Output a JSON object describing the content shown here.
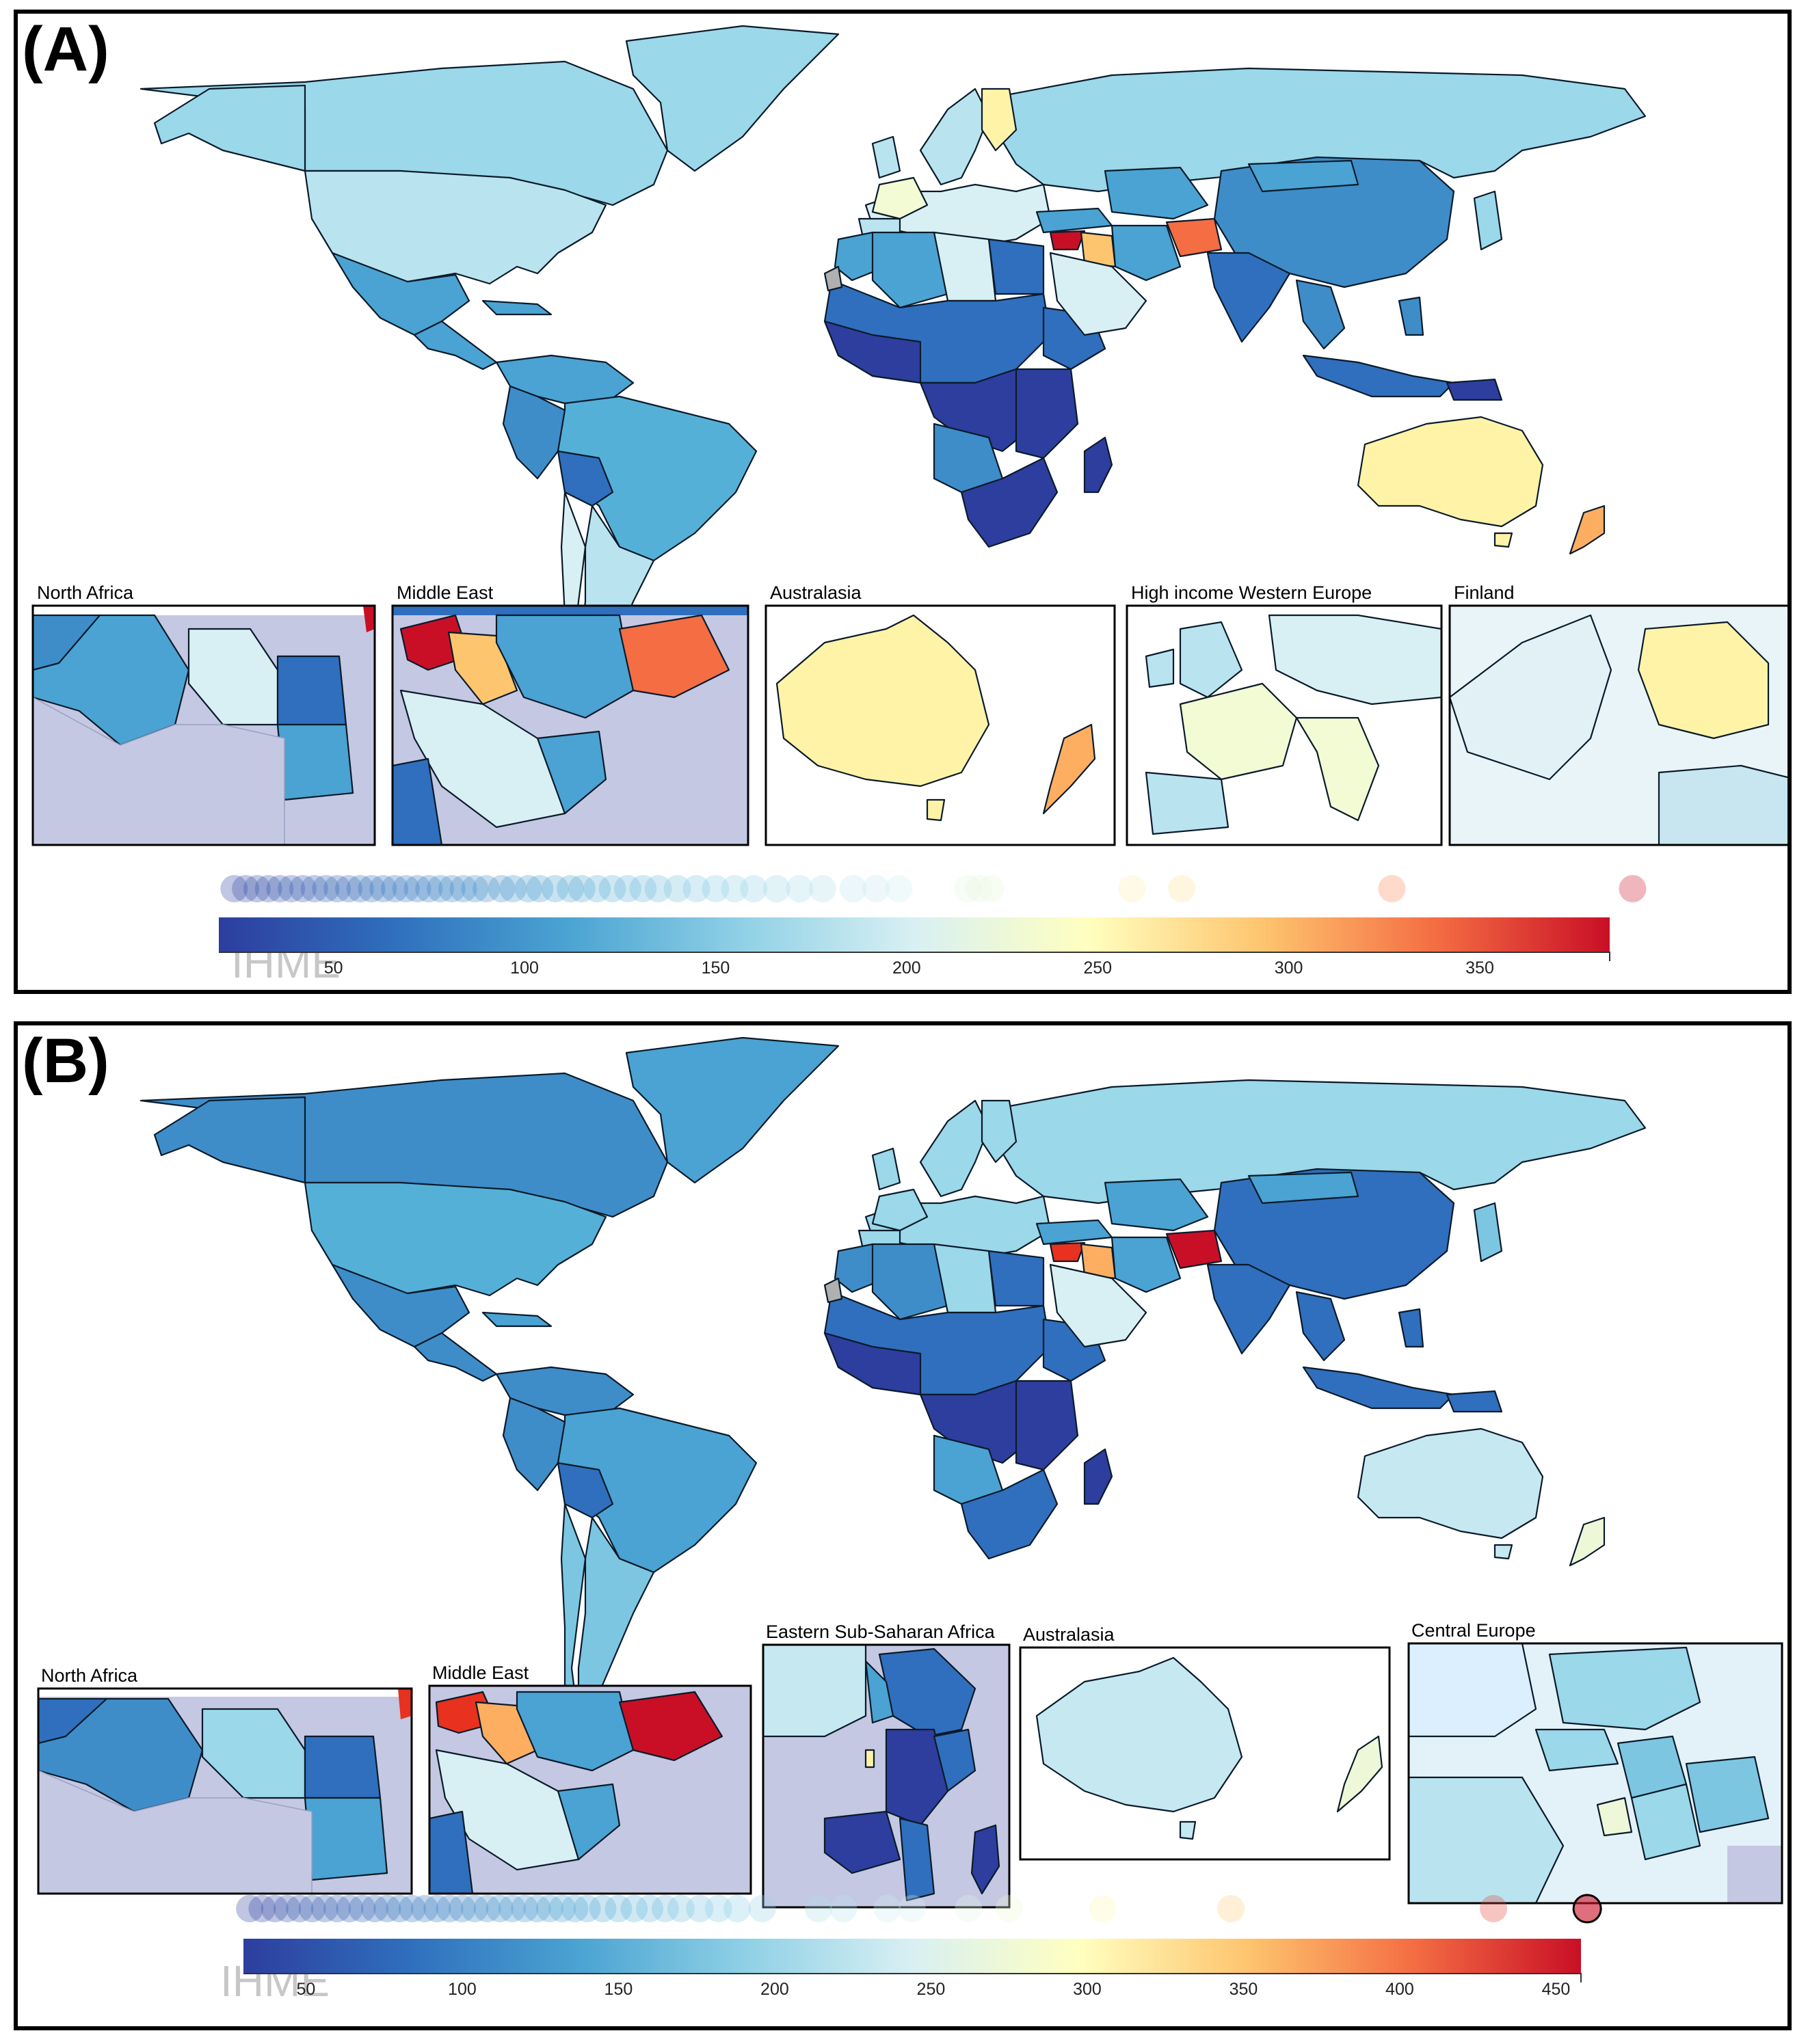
{
  "colors": {
    "scale": [
      "#2d3e9e",
      "#2f6fbd",
      "#4aa3d2",
      "#8fd0e6",
      "#d8f0f3",
      "#ffffbf",
      "#fec56f",
      "#f46d43",
      "#c90f26"
    ],
    "missing": "#b0b0b0",
    "dim": "#c4c8e2"
  },
  "panels": [
    {
      "label": "(A)",
      "insets": [
        {
          "title": "North Africa"
        },
        {
          "title": "Middle East"
        },
        {
          "title": "Australasia"
        },
        {
          "title": "High income Western Europe"
        },
        {
          "title": "Finland"
        }
      ],
      "legend": {
        "range": [
          20,
          384
        ],
        "ticks": [
          50,
          100,
          150,
          200,
          250,
          300,
          350
        ],
        "tick_labels": [
          "50",
          "100",
          "150",
          "200",
          "250",
          "300",
          "350"
        ],
        "watermark": "IHME",
        "dots": [
          24,
          27,
          30,
          33,
          36,
          39,
          42,
          45,
          48,
          51,
          54,
          57,
          60,
          63,
          66,
          69,
          72,
          75,
          78,
          81,
          84,
          87,
          90,
          94,
          97,
          101,
          104,
          108,
          112,
          115,
          119,
          123,
          127,
          131,
          135,
          140,
          145,
          150,
          155,
          160,
          166,
          172,
          178,
          186,
          192,
          198,
          216,
          219,
          222,
          259,
          272,
          327,
          390
        ]
      }
    },
    {
      "label": "(B)",
      "insets": [
        {
          "title": "North Africa"
        },
        {
          "title": "Middle East"
        },
        {
          "title": "Eastern Sub-Saharan Africa"
        },
        {
          "title": "Australasia"
        },
        {
          "title": "Central Europe"
        }
      ],
      "legend": {
        "range": [
          30,
          458
        ],
        "ticks": [
          50,
          100,
          150,
          200,
          250,
          300,
          350,
          400,
          450
        ],
        "tick_labels": [
          "50",
          "100",
          "150",
          "200",
          "250",
          "300",
          "350",
          "400",
          "450"
        ],
        "watermark": "IHME",
        "dots": [
          32,
          36,
          40,
          44,
          48,
          52,
          56,
          60,
          64,
          68,
          72,
          76,
          80,
          84,
          88,
          92,
          96,
          100,
          104,
          108,
          112,
          116,
          120,
          124,
          128,
          132,
          136,
          140,
          145,
          150,
          155,
          160,
          165,
          170,
          176,
          182,
          188,
          196,
          214,
          222,
          236,
          244,
          262,
          275,
          305,
          346,
          430,
          460
        ]
      }
    }
  ]
}
